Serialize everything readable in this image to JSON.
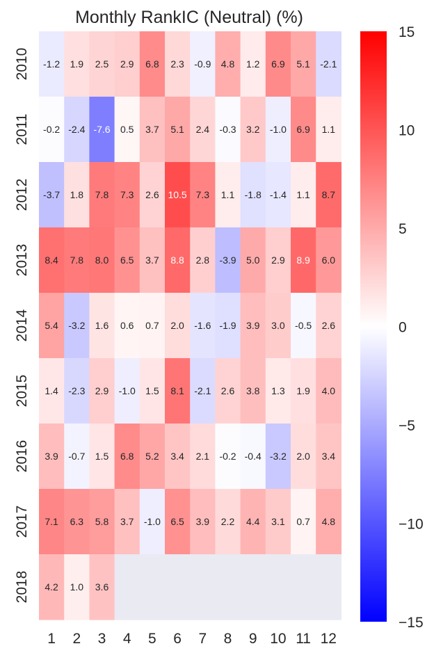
{
  "chart_data": {
    "type": "heatmap",
    "title": "Monthly RankIC (Neutral) (%)",
    "xlabel": "",
    "ylabel": "",
    "x_categories": [
      "1",
      "2",
      "3",
      "4",
      "5",
      "6",
      "7",
      "8",
      "9",
      "10",
      "11",
      "12"
    ],
    "y_categories": [
      "2010",
      "2011",
      "2012",
      "2013",
      "2014",
      "2015",
      "2016",
      "2017",
      "2018"
    ],
    "values": [
      [
        -1.2,
        1.9,
        2.5,
        2.9,
        6.8,
        2.3,
        -0.9,
        4.8,
        1.2,
        6.9,
        5.1,
        -2.1
      ],
      [
        -0.2,
        -2.4,
        -7.6,
        0.5,
        3.7,
        5.1,
        2.4,
        -0.3,
        3.2,
        -1.0,
        6.9,
        1.1
      ],
      [
        -3.7,
        1.8,
        7.8,
        7.3,
        2.6,
        10.5,
        7.3,
        1.1,
        -1.8,
        -1.4,
        1.1,
        8.7
      ],
      [
        8.4,
        7.8,
        8.0,
        6.5,
        3.7,
        8.8,
        2.8,
        -3.9,
        5.0,
        2.9,
        8.9,
        6.0
      ],
      [
        5.4,
        -3.2,
        1.6,
        0.6,
        0.7,
        2.0,
        -1.6,
        -1.9,
        3.9,
        3.0,
        -0.5,
        2.6
      ],
      [
        1.4,
        -2.3,
        2.9,
        -1.0,
        1.5,
        8.1,
        -2.1,
        2.6,
        3.8,
        1.3,
        1.9,
        4.0
      ],
      [
        3.9,
        -0.7,
        1.5,
        6.8,
        5.2,
        3.4,
        2.1,
        -0.2,
        -0.4,
        -3.2,
        2.0,
        3.4
      ],
      [
        7.1,
        6.3,
        5.8,
        3.7,
        -1.0,
        6.5,
        3.9,
        2.2,
        4.4,
        3.1,
        0.7,
        4.8
      ],
      [
        4.2,
        1.0,
        3.6,
        null,
        null,
        null,
        null,
        null,
        null,
        null,
        null,
        null
      ]
    ],
    "value_format": "0.0",
    "colormap": "bwr",
    "vmin": -15,
    "vmax": 15,
    "colorbar_ticks": [
      15,
      10,
      5,
      0,
      -5,
      -10,
      -15
    ],
    "colorbar_tick_labels": [
      "15",
      "10",
      "5",
      "0",
      "−5",
      "−10",
      "−15"
    ],
    "missing_color": "#eaeaf2",
    "grid": false,
    "legend": "colorbar-right"
  }
}
